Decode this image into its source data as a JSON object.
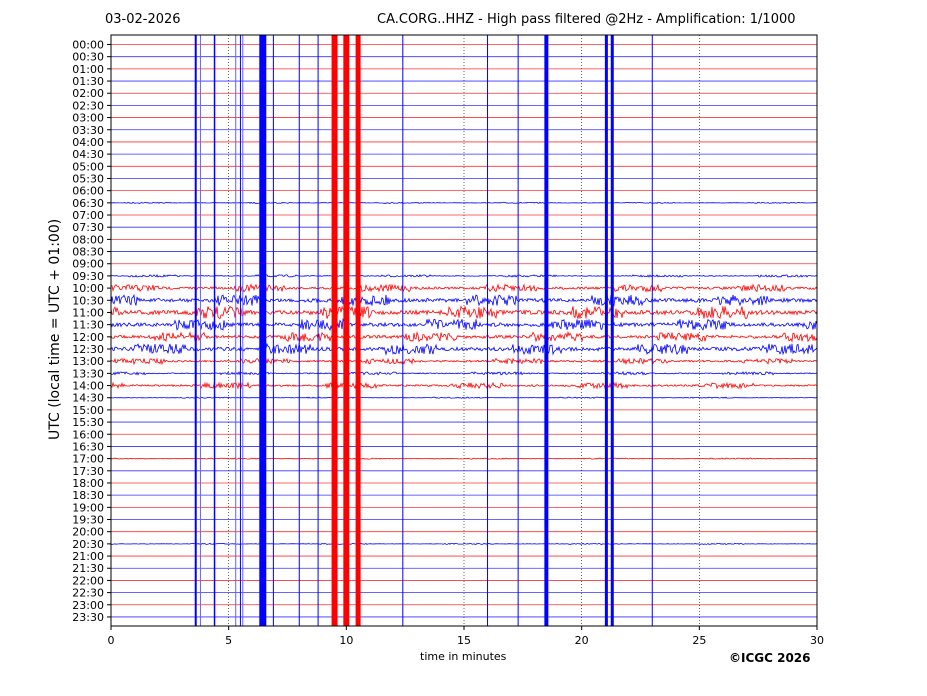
{
  "chart_data": {
    "type": "line",
    "title": "CA.CORG..HHZ - High pass filtered @2Hz - Amplification: 1/1000",
    "date": "03-02-2026",
    "xlabel": "time in minutes",
    "ylabel": "UTC (local time = UTC + 01:00)",
    "xlim": [
      0,
      30
    ],
    "xticks": [
      "0",
      "5",
      "10",
      "15",
      "20",
      "25",
      "30"
    ],
    "xtick_values": [
      0,
      5,
      10,
      15,
      20,
      25,
      30
    ],
    "rows": [
      "00:00",
      "00:30",
      "01:00",
      "01:30",
      "02:00",
      "02:30",
      "03:00",
      "03:30",
      "04:00",
      "04:30",
      "05:00",
      "05:30",
      "06:00",
      "06:30",
      "07:00",
      "07:30",
      "08:00",
      "08:30",
      "09:00",
      "09:30",
      "10:00",
      "10:30",
      "11:00",
      "11:30",
      "12:00",
      "12:30",
      "13:00",
      "13:30",
      "14:00",
      "14:30",
      "15:00",
      "15:30",
      "16:00",
      "16:30",
      "17:00",
      "17:30",
      "18:00",
      "18:30",
      "19:00",
      "19:30",
      "20:00",
      "20:30",
      "21:00",
      "21:30",
      "22:00",
      "22:30",
      "23:00",
      "23:30"
    ],
    "row_colors": [
      "#ff0000",
      "#0000ff"
    ],
    "row_noise": [
      0,
      0,
      0,
      0,
      0,
      0,
      0,
      0,
      0,
      0,
      0,
      0,
      0,
      0.3,
      0,
      0,
      0,
      0,
      0,
      0.6,
      2,
      3,
      3.5,
      3,
      2.5,
      3,
      1.5,
      0.8,
      1.5,
      0.3,
      0,
      0,
      0,
      0,
      0.3,
      0,
      0,
      0,
      0,
      0,
      0,
      0.3,
      0,
      0,
      0,
      0,
      0,
      0
    ],
    "events": [
      {
        "t": 3.6,
        "w": 2,
        "color": "#0000ff"
      },
      {
        "t": 3.8,
        "w": 1,
        "color": "#6060ff"
      },
      {
        "t": 4.4,
        "w": 1.5,
        "color": "#0000ff"
      },
      {
        "t": 5.3,
        "w": 1,
        "color": "#6060ff"
      },
      {
        "t": 5.5,
        "w": 1,
        "color": "#0000ff"
      },
      {
        "t": 5.6,
        "w": 1,
        "color": "#6060ff"
      },
      {
        "t": 6.45,
        "w": 7,
        "color": "#0000ff"
      },
      {
        "t": 6.9,
        "w": 1,
        "color": "#0000ff"
      },
      {
        "t": 8.0,
        "w": 1,
        "color": "#0000ff"
      },
      {
        "t": 8.8,
        "w": 1,
        "color": "#0000ff"
      },
      {
        "t": 9.5,
        "w": 6,
        "color": "#ff0000"
      },
      {
        "t": 10.0,
        "w": 6,
        "color": "#ff0000"
      },
      {
        "t": 10.5,
        "w": 5,
        "color": "#ff0000"
      },
      {
        "t": 12.4,
        "w": 1,
        "color": "#0000ff"
      },
      {
        "t": 16.0,
        "w": 1,
        "color": "#0000ff"
      },
      {
        "t": 17.3,
        "w": 1,
        "color": "#0000ff"
      },
      {
        "t": 18.5,
        "w": 4,
        "color": "#0000ff"
      },
      {
        "t": 21.05,
        "w": 3,
        "color": "#0000ff"
      },
      {
        "t": 21.3,
        "w": 3,
        "color": "#0000ff"
      },
      {
        "t": 23.0,
        "w": 1,
        "color": "#0000ff"
      }
    ],
    "grid": "vertical dotted at major ticks"
  },
  "copyright": "©ICGC 2026"
}
